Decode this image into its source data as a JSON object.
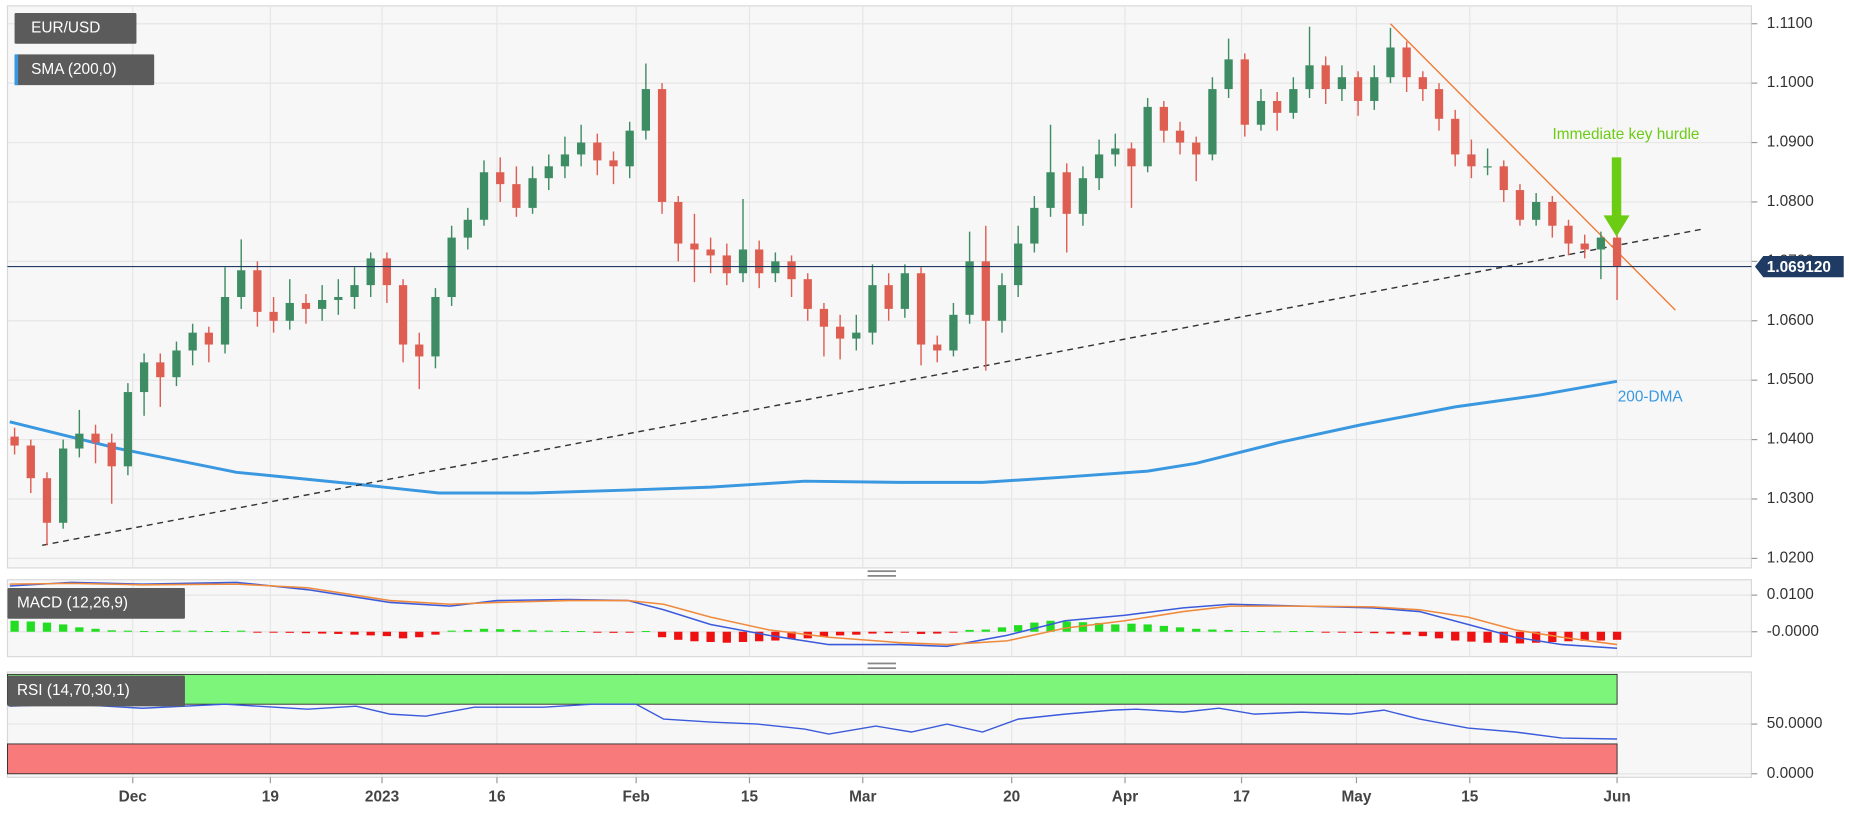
{
  "chart_data": [
    {
      "type": "candlestick",
      "name": "EUR/USD",
      "colors": {
        "up": "#3d8c63",
        "down": "#de5e52"
      },
      "xlim": [
        -0.44,
        107.3
      ],
      "ylim": [
        1.0184,
        1.113
      ],
      "yticks": [
        {
          "value": 1.02,
          "label": "1.0200"
        },
        {
          "value": 1.03,
          "label": "1.0300"
        },
        {
          "value": 1.04,
          "label": "1.0400"
        },
        {
          "value": 1.05,
          "label": "1.0500"
        },
        {
          "value": 1.06,
          "label": "1.0600"
        },
        {
          "value": 1.07,
          "label": "1.0700"
        },
        {
          "value": 1.08,
          "label": "1.0800"
        },
        {
          "value": 1.09,
          "label": "1.0900"
        },
        {
          "value": 1.1,
          "label": "1.1000"
        },
        {
          "value": 1.11,
          "label": "1.1100"
        }
      ],
      "ohlc": [
        [
          1.0405,
          1.042,
          1.0375,
          1.039
        ],
        [
          1.039,
          1.04,
          1.031,
          1.0335
        ],
        [
          1.0335,
          1.0345,
          1.0222,
          1.026
        ],
        [
          1.026,
          1.04,
          1.025,
          1.0385
        ],
        [
          1.0385,
          1.045,
          1.037,
          1.041
        ],
        [
          1.041,
          1.0425,
          1.036,
          1.0395
        ],
        [
          1.0395,
          1.041,
          1.0292,
          1.0355
        ],
        [
          1.0355,
          1.0495,
          1.034,
          1.048
        ],
        [
          1.048,
          1.0545,
          1.044,
          1.053
        ],
        [
          1.053,
          1.0545,
          1.0455,
          1.0505
        ],
        [
          1.0505,
          1.0565,
          1.049,
          1.055
        ],
        [
          1.055,
          1.0595,
          1.0525,
          1.058
        ],
        [
          1.058,
          1.059,
          1.053,
          1.056
        ],
        [
          1.056,
          1.069,
          1.0545,
          1.064
        ],
        [
          1.064,
          1.0737,
          1.062,
          1.0685
        ],
        [
          1.0685,
          1.07,
          1.059,
          1.0615
        ],
        [
          1.0615,
          1.064,
          1.058,
          1.06
        ],
        [
          1.06,
          1.067,
          1.0585,
          1.063
        ],
        [
          1.063,
          1.0645,
          1.0595,
          1.062
        ],
        [
          1.062,
          1.066,
          1.06,
          1.0635
        ],
        [
          1.0635,
          1.067,
          1.061,
          1.064
        ],
        [
          1.064,
          1.069,
          1.062,
          1.066
        ],
        [
          1.066,
          1.0715,
          1.064,
          1.0705
        ],
        [
          1.0705,
          1.0715,
          1.063,
          1.066
        ],
        [
          1.066,
          1.067,
          1.053,
          1.056
        ],
        [
          1.056,
          1.058,
          1.0485,
          1.054
        ],
        [
          1.054,
          1.0655,
          1.052,
          1.064
        ],
        [
          1.064,
          1.076,
          1.0625,
          1.074
        ],
        [
          1.074,
          1.079,
          1.072,
          1.077
        ],
        [
          1.077,
          1.087,
          1.076,
          1.085
        ],
        [
          1.085,
          1.0875,
          1.08,
          1.083
        ],
        [
          1.083,
          1.086,
          1.0775,
          1.079
        ],
        [
          1.079,
          1.086,
          1.078,
          1.084
        ],
        [
          1.084,
          1.088,
          1.082,
          1.086
        ],
        [
          1.086,
          1.091,
          1.084,
          1.088
        ],
        [
          1.088,
          1.093,
          1.086,
          1.09
        ],
        [
          1.09,
          1.0915,
          1.0845,
          1.087
        ],
        [
          1.087,
          1.0885,
          1.083,
          1.086
        ],
        [
          1.086,
          1.0935,
          1.084,
          1.092
        ],
        [
          1.092,
          1.1033,
          1.0905,
          1.099
        ],
        [
          1.099,
          1.1,
          1.078,
          1.08
        ],
        [
          1.08,
          1.081,
          1.07,
          1.073
        ],
        [
          1.073,
          1.078,
          1.0665,
          1.072
        ],
        [
          1.072,
          1.074,
          1.068,
          1.071
        ],
        [
          1.071,
          1.073,
          1.066,
          1.068
        ],
        [
          1.068,
          1.0805,
          1.0665,
          1.072
        ],
        [
          1.072,
          1.0735,
          1.0655,
          1.068
        ],
        [
          1.068,
          1.0715,
          1.0665,
          1.07
        ],
        [
          1.07,
          1.071,
          1.064,
          1.067
        ],
        [
          1.067,
          1.068,
          1.06,
          1.062
        ],
        [
          1.062,
          1.063,
          1.054,
          1.059
        ],
        [
          1.059,
          1.061,
          1.0535,
          1.057
        ],
        [
          1.057,
          1.061,
          1.055,
          1.058
        ],
        [
          1.058,
          1.0695,
          1.056,
          1.066
        ],
        [
          1.066,
          1.068,
          1.06,
          1.062
        ],
        [
          1.062,
          1.0695,
          1.0605,
          1.068
        ],
        [
          1.068,
          1.069,
          1.0525,
          1.056
        ],
        [
          1.056,
          1.0575,
          1.053,
          1.055
        ],
        [
          1.055,
          1.063,
          1.054,
          1.061
        ],
        [
          1.061,
          1.075,
          1.0595,
          1.07
        ],
        [
          1.07,
          1.076,
          1.0516,
          1.06
        ],
        [
          1.06,
          1.068,
          1.058,
          1.066
        ],
        [
          1.066,
          1.076,
          1.064,
          1.073
        ],
        [
          1.073,
          1.081,
          1.0715,
          1.079
        ],
        [
          1.079,
          1.093,
          1.0775,
          1.085
        ],
        [
          1.085,
          1.0865,
          1.0715,
          1.078
        ],
        [
          1.078,
          1.086,
          1.076,
          1.084
        ],
        [
          1.084,
          1.0905,
          1.082,
          1.088
        ],
        [
          1.088,
          1.0915,
          1.086,
          1.089
        ],
        [
          1.089,
          1.09,
          1.079,
          1.086
        ],
        [
          1.086,
          1.0975,
          1.085,
          1.096
        ],
        [
          1.096,
          1.097,
          1.09,
          1.092
        ],
        [
          1.092,
          1.0935,
          1.088,
          1.09
        ],
        [
          1.09,
          1.091,
          1.0835,
          1.088
        ],
        [
          1.088,
          1.101,
          1.087,
          1.099
        ],
        [
          1.099,
          1.1075,
          1.0975,
          1.104
        ],
        [
          1.104,
          1.105,
          1.091,
          1.093
        ],
        [
          1.093,
          1.099,
          1.092,
          1.097
        ],
        [
          1.097,
          1.0985,
          1.092,
          1.095
        ],
        [
          1.095,
          1.101,
          1.094,
          1.099
        ],
        [
          1.099,
          1.1095,
          1.0975,
          1.103
        ],
        [
          1.103,
          1.1045,
          1.0965,
          1.099
        ],
        [
          1.099,
          1.103,
          1.097,
          1.101
        ],
        [
          1.101,
          1.102,
          1.0945,
          1.097
        ],
        [
          1.097,
          1.103,
          1.0955,
          1.101
        ],
        [
          1.101,
          1.1093,
          1.1,
          1.106
        ],
        [
          1.106,
          1.107,
          1.0985,
          1.101
        ],
        [
          1.101,
          1.102,
          1.097,
          1.099
        ],
        [
          1.099,
          1.1,
          1.092,
          1.094
        ],
        [
          1.094,
          1.0955,
          1.086,
          1.088
        ],
        [
          1.088,
          1.0905,
          1.084,
          1.086
        ],
        [
          1.086,
          1.089,
          1.0845,
          1.086
        ],
        [
          1.086,
          1.087,
          1.08,
          1.082
        ],
        [
          1.082,
          1.083,
          1.076,
          1.077
        ],
        [
          1.077,
          1.0815,
          1.076,
          1.08
        ],
        [
          1.08,
          1.081,
          1.074,
          1.076
        ],
        [
          1.076,
          1.077,
          1.071,
          1.073
        ],
        [
          1.073,
          1.0745,
          1.0705,
          1.072
        ],
        [
          1.072,
          1.075,
          1.067,
          1.074
        ],
        [
          1.074,
          1.0745,
          1.0635,
          1.0691
        ]
      ],
      "overlays": [
        {
          "name": "SMA (200,0)",
          "color": "#3a98e0",
          "x": [
            -0.3,
            6.4,
            13.7,
            21.1,
            26.2,
            32.0,
            37.9,
            43.0,
            48.8,
            54.7,
            59.8,
            64.9,
            70.0,
            73.0,
            78.1,
            83.2,
            89.0,
            94.2,
            99.0
          ],
          "values": [
            1.043,
            1.0385,
            1.0345,
            1.0325,
            1.031,
            1.031,
            1.0315,
            1.032,
            1.033,
            1.0328,
            1.0328,
            1.0337,
            1.0347,
            1.036,
            1.0395,
            1.0425,
            1.0455,
            1.0475,
            1.0498
          ]
        }
      ],
      "trendlines": [
        {
          "x": [
            1.7,
            104.4
          ],
          "values": [
            1.0222,
            1.0755
          ],
          "color": "#333333",
          "dashed": true
        },
        {
          "x": [
            85.0,
            102.6
          ],
          "values": [
            1.11,
            1.0618
          ],
          "color": "#f07c3a",
          "dashed": false
        }
      ],
      "last_price": {
        "value": 1.06912,
        "label": "1.069120"
      },
      "annotations": [
        {
          "text": "Immediate key hurdle",
          "color": "#6ccc14"
        },
        {
          "text": "200-DMA",
          "color": "#3a98e0"
        }
      ]
    },
    {
      "type": "macd",
      "name": "MACD (12,26,9)",
      "xlim": [
        -0.44,
        107.3
      ],
      "ylim": [
        -0.0068,
        0.0142
      ],
      "yticks": [
        {
          "value": 0,
          "label": "-0.0000"
        },
        {
          "value": 0.01,
          "label": "0.0100"
        }
      ],
      "x": [
        -0.3,
        3.5,
        7.9,
        13.7,
        18.1,
        23.2,
        26.9,
        29.8,
        34.2,
        37.9,
        40.1,
        43.0,
        46.6,
        50.3,
        54.7,
        57.6,
        61.3,
        64.9,
        68.6,
        72.2,
        75.1,
        79.5,
        83.9,
        86.8,
        89.8,
        92.7,
        95.6,
        99.0
      ],
      "series": [
        {
          "color": "#3b5bdb",
          "values": [
            0.0125,
            0.0135,
            0.013,
            0.0135,
            0.0115,
            0.008,
            0.007,
            0.0085,
            0.0088,
            0.0085,
            0.006,
            0.002,
            -0.001,
            -0.0035,
            -0.0035,
            -0.004,
            -0.001,
            0.003,
            0.0045,
            0.0065,
            0.0075,
            0.007,
            0.0065,
            0.0055,
            0.002,
            -0.0015,
            -0.0035,
            -0.0045
          ]
        },
        {
          "color": "#f08a3c",
          "values": [
            0.013,
            0.0132,
            0.0128,
            0.013,
            0.012,
            0.0085,
            0.0075,
            0.008,
            0.0085,
            0.0085,
            0.0075,
            0.004,
            0.0005,
            -0.0015,
            -0.003,
            -0.0035,
            -0.0025,
            0.001,
            0.003,
            0.0055,
            0.007,
            0.007,
            0.0068,
            0.006,
            0.004,
            0.0005,
            -0.0015,
            -0.0035
          ]
        }
      ],
      "histogram": {
        "up_color": "#22dd22",
        "down_color": "#ee1111",
        "values": [
          0.003,
          0.0028,
          0.0025,
          0.002,
          0.0012,
          0.0008,
          0.0004,
          0.0003,
          0.0002,
          0.0002,
          0.0003,
          0.0003,
          0.0002,
          0.0002,
          0.0003,
          -0.0002,
          -0.0002,
          -0.0003,
          -0.0004,
          -0.0005,
          -0.0006,
          -0.0008,
          -0.001,
          -0.0012,
          -0.0018,
          -0.0015,
          -0.0008,
          0.0003,
          0.0005,
          0.0008,
          0.0007,
          0.0005,
          0.0004,
          0.0003,
          0.0002,
          0.0002,
          -0.0002,
          -0.0003,
          -0.0002,
          0.0002,
          -0.0015,
          -0.0022,
          -0.0026,
          -0.0028,
          -0.003,
          -0.0028,
          -0.0026,
          -0.0024,
          -0.002,
          -0.0018,
          -0.0014,
          -0.001,
          -0.0008,
          -0.0005,
          -0.0004,
          -0.0002,
          -0.0006,
          -0.0005,
          -0.0002,
          0.0005,
          0.0006,
          0.0012,
          0.0018,
          0.0025,
          0.003,
          0.0028,
          0.0026,
          0.0024,
          0.002,
          0.0022,
          0.002,
          0.0016,
          0.0012,
          0.0008,
          0.0006,
          0.0005,
          0.0002,
          0.0002,
          0.0001,
          0.0002,
          0.0002,
          -0.0001,
          -0.0002,
          -0.0003,
          -0.0004,
          -0.0005,
          -0.0008,
          -0.0012,
          -0.0018,
          -0.0024,
          -0.0027,
          -0.003,
          -0.003,
          -0.0032,
          -0.003,
          -0.0028,
          -0.0026,
          -0.0025,
          -0.0024,
          -0.0022
        ]
      }
    },
    {
      "type": "line",
      "name": "RSI (14,70,30,1)",
      "xlim": [
        -0.44,
        107.3
      ],
      "ylim": [
        -3.6,
        102.4
      ],
      "yticks": [
        {
          "value": 0,
          "label": "0.0000"
        },
        {
          "value": 50,
          "label": "50.0000"
        }
      ],
      "bands": [
        {
          "from": 70,
          "to": 100,
          "color": "#7df57a"
        },
        {
          "from": 0,
          "to": 30,
          "color": "#f87a7a"
        }
      ],
      "x": [
        -0.3,
        3.5,
        7.9,
        13.0,
        18.1,
        21.1,
        23.2,
        25.4,
        28.4,
        32.7,
        35.7,
        38.4,
        40.1,
        43.0,
        45.9,
        48.8,
        50.3,
        53.2,
        55.4,
        57.6,
        59.8,
        62.0,
        64.9,
        67.8,
        69.3,
        72.2,
        74.4,
        76.6,
        79.5,
        82.5,
        84.6,
        86.8,
        89.8,
        92.7,
        95.6,
        99.0
      ],
      "series": [
        {
          "color": "#3b5bdb",
          "values": [
            68,
            70,
            66,
            70,
            65,
            68,
            60,
            58,
            67,
            67,
            70,
            70,
            55,
            52,
            50,
            45,
            40,
            48,
            42,
            50,
            42,
            55,
            60,
            64,
            65,
            62,
            66,
            60,
            62,
            60,
            64,
            55,
            46,
            42,
            36,
            35
          ]
        }
      ],
      "xticks": [
        {
          "value": 7.3,
          "label": "Dec"
        },
        {
          "value": 15.8,
          "label": "19"
        },
        {
          "value": 22.7,
          "label": "2023"
        },
        {
          "value": 29.8,
          "label": "16"
        },
        {
          "value": 38.4,
          "label": "Feb"
        },
        {
          "value": 45.4,
          "label": "15"
        },
        {
          "value": 52.4,
          "label": "Mar"
        },
        {
          "value": 61.6,
          "label": "20"
        },
        {
          "value": 68.6,
          "label": "Apr"
        },
        {
          "value": 75.8,
          "label": "17"
        },
        {
          "value": 82.9,
          "label": "May"
        },
        {
          "value": 89.9,
          "label": "15"
        },
        {
          "value": 99.0,
          "label": "Jun"
        }
      ]
    }
  ]
}
